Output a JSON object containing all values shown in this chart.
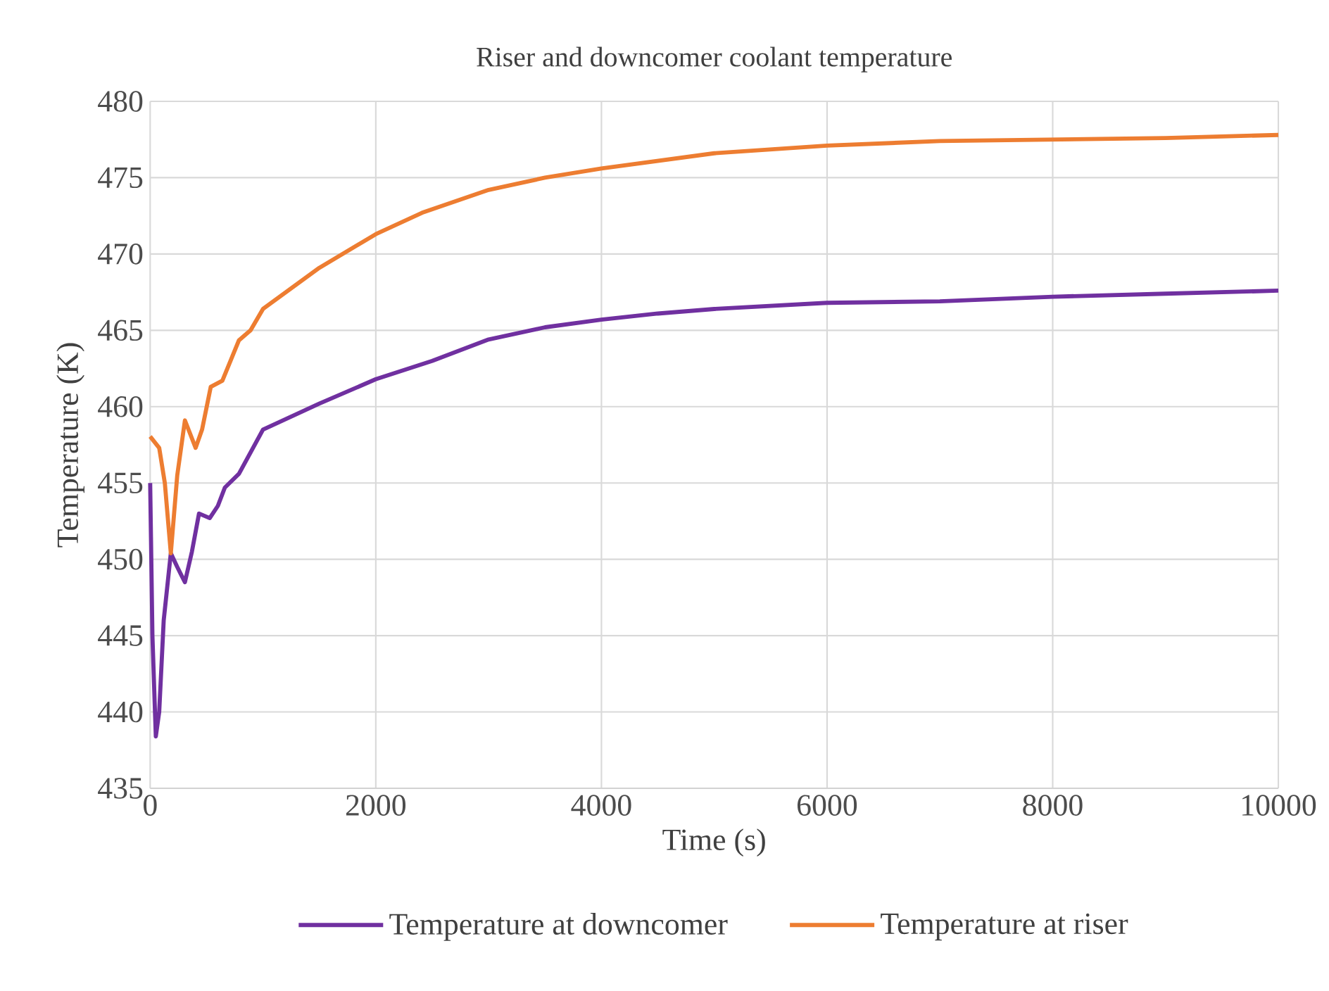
{
  "chart_data": {
    "type": "line",
    "title": "Riser and downcomer coolant temperature",
    "xlabel": "Time (s)",
    "ylabel": "Temperature (K)",
    "xlim": [
      0,
      10000
    ],
    "xticks": [
      0,
      2000,
      4000,
      6000,
      8000,
      10000
    ],
    "ylim": [
      435,
      480
    ],
    "yticks": [
      435,
      440,
      445,
      450,
      455,
      460,
      465,
      470,
      475,
      480
    ],
    "grid": true,
    "legend": "bottom",
    "marker": "none",
    "line_style": "solid",
    "series": [
      {
        "name": "Temperature at downcomer",
        "color": "#7030a0",
        "x": [
          0,
          20,
          50,
          80,
          120,
          183,
          240,
          308,
          370,
          433,
          528,
          600,
          662,
          787,
          1000,
          1500,
          2000,
          2500,
          3000,
          3500,
          4000,
          4500,
          5000,
          6000,
          7000,
          8000,
          9000,
          10000
        ],
        "values": [
          455,
          445,
          438.4,
          440,
          446,
          450.4,
          449.5,
          448.5,
          450.5,
          453,
          452.7,
          453.5,
          454.7,
          455.6,
          458.5,
          460.2,
          461.8,
          463.0,
          464.4,
          465.2,
          465.7,
          466.1,
          466.4,
          466.8,
          466.9,
          467.2,
          467.4,
          467.6
        ]
      },
      {
        "name": "Temperature at riser",
        "color": "#ed7d31",
        "x": [
          0,
          80,
          130,
          183,
          240,
          308,
          403,
          460,
          537,
          640,
          787,
          890,
          1000,
          1500,
          2000,
          2410,
          3000,
          3500,
          4000,
          4500,
          5000,
          6000,
          7000,
          8000,
          9000,
          10000
        ],
        "values": [
          458.05,
          457.3,
          455,
          450.4,
          455.5,
          459.1,
          457.3,
          458.5,
          461.3,
          461.7,
          464.35,
          465,
          466.4,
          469.1,
          471.3,
          472.7,
          474.2,
          475.0,
          475.6,
          476.1,
          476.6,
          477.1,
          477.4,
          477.5,
          477.6,
          477.8
        ]
      }
    ]
  }
}
